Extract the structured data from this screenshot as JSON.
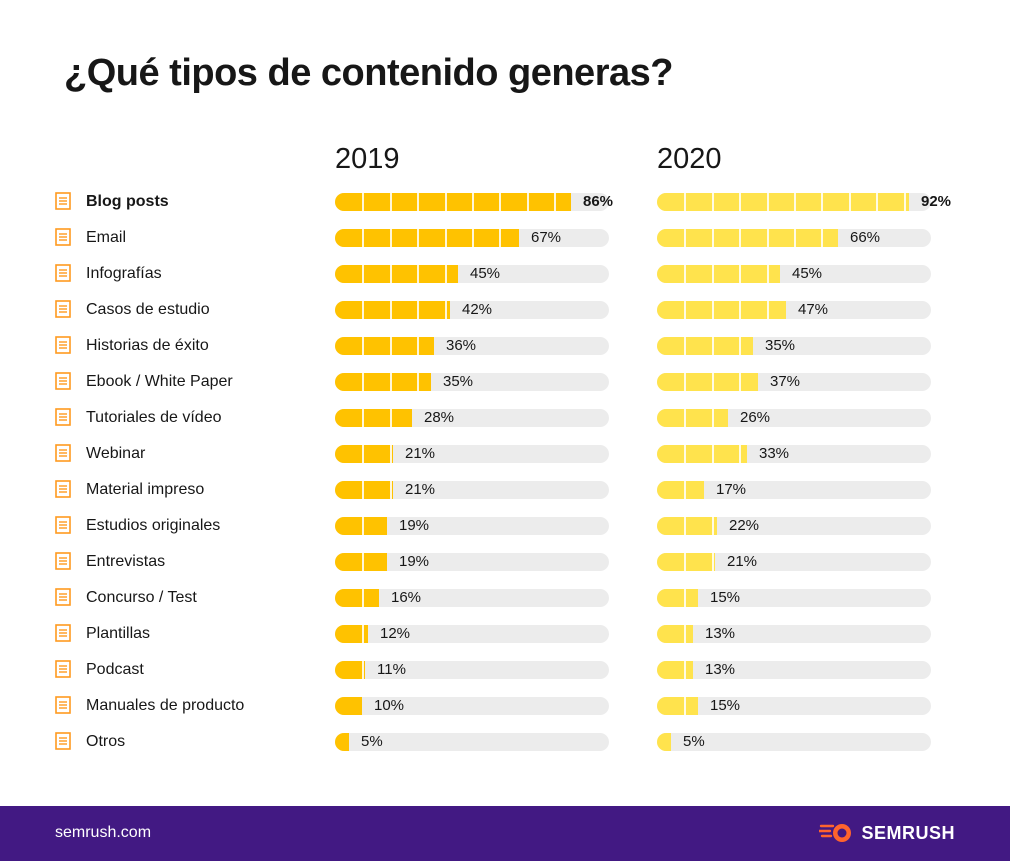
{
  "title": "¿Qué tipos de contenido generas?",
  "footer": {
    "url": "semrush.com",
    "brand": "SEMRUSH"
  },
  "colors": {
    "bar_2019": "#ffc200",
    "bar_2020": "#ffe34d",
    "track": "#ececec",
    "footer_bg": "#421983",
    "icon": "#ff9a1f",
    "brand_orange": "#ff642d"
  },
  "chart_data": {
    "type": "bar",
    "orientation": "horizontal",
    "title": "¿Qué tipos de contenido generas?",
    "xlim": [
      0,
      100
    ],
    "unit": "%",
    "categories": [
      "Blog posts",
      "Email",
      "Infografías",
      "Casos de estudio",
      "Historias de éxito",
      "Ebook / White Paper",
      "Tutoriales de vídeo",
      "Webinar",
      "Material impreso",
      "Estudios originales",
      "Entrevistas",
      "Concurso / Test",
      "Plantillas",
      "Podcast",
      "Manuales de producto",
      "Otros"
    ],
    "series": [
      {
        "name": "2019",
        "values": [
          86,
          67,
          45,
          42,
          36,
          35,
          28,
          21,
          21,
          19,
          19,
          16,
          12,
          11,
          10,
          5
        ],
        "labels": [
          "86%",
          "67%",
          "45%",
          "42%",
          "36%",
          "35%",
          "28%",
          "21%",
          "21%",
          "19%",
          "19%",
          "16%",
          "12%",
          "11%",
          "10%",
          "5%"
        ]
      },
      {
        "name": "2020",
        "values": [
          92,
          66,
          45,
          47,
          35,
          37,
          26,
          33,
          17,
          22,
          21,
          15,
          13,
          13,
          15,
          5
        ],
        "labels": [
          "92%",
          "66%",
          "45%",
          "47%",
          "35%",
          "37%",
          "26%",
          "33%",
          "17%",
          "22%",
          "21%",
          "15%",
          "13%",
          "13%",
          "15%",
          "5%"
        ]
      }
    ]
  }
}
